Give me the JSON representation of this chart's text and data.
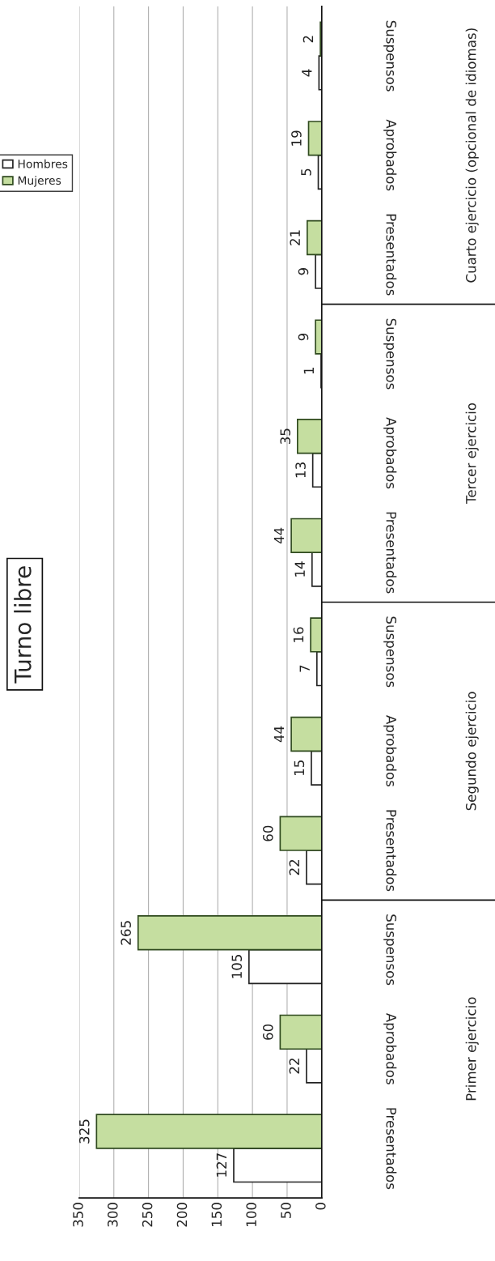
{
  "chart_data": {
    "type": "bar",
    "orientation": "horizontal",
    "title": "Turno libre",
    "categories": [
      "Suspensos",
      "Aprobados",
      "Presentados",
      "Suspensos",
      "Aprobados",
      "Presentados",
      "Suspensos",
      "Aprobados",
      "Presentados",
      "Suspensos",
      "Aprobados",
      "Presentados"
    ],
    "series": [
      {
        "name": "Hombres",
        "color": "#ffffff",
        "values": [
          4,
          5,
          9,
          1,
          13,
          14,
          7,
          15,
          22,
          105,
          22,
          127
        ]
      },
      {
        "name": "Mujeres",
        "color": "#c5dea0",
        "values": [
          2,
          19,
          21,
          9,
          35,
          44,
          16,
          44,
          60,
          265,
          60,
          325
        ]
      }
    ],
    "xlim": [
      350,
      0
    ],
    "xticks": [
      0,
      50,
      100,
      150,
      200,
      250,
      300,
      350
    ],
    "grid": "x",
    "legend": "left",
    "data_labels": true,
    "annotations": [
      "Cuarto ejercicio (opcional de idiomas)",
      "Tercer ejercicio",
      "Segundo ejercicio",
      "Primer ejercicio"
    ]
  }
}
